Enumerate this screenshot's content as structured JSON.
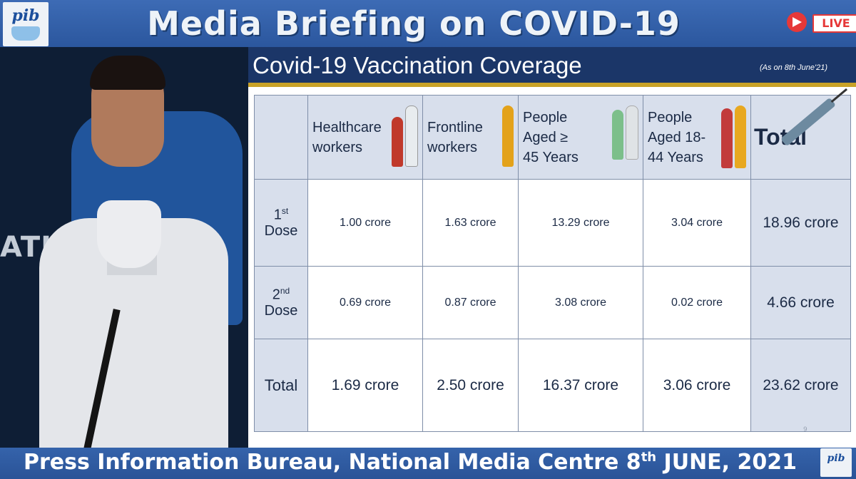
{
  "header": {
    "logo_text": "pib",
    "title": "Media Briefing on COVID-19",
    "live_label": "LIVE"
  },
  "speaker_panel": {
    "backdrop_text": "ATIONA"
  },
  "slide": {
    "title": "Covid-19 Vaccination Coverage",
    "date_note": "(As on 8th June'21)",
    "page_number": "9",
    "columns": [
      "Healthcare workers",
      "Frontline workers",
      "People Aged ≥ 45 Years",
      "People Aged 18-44 Years",
      "Total"
    ],
    "rows": [
      {
        "label_num": "1",
        "label_sup": "st",
        "label_word": "Dose",
        "values": [
          "1.00 crore",
          "1.63 crore",
          "13.29 crore",
          "3.04 crore",
          "18.96 crore"
        ]
      },
      {
        "label_num": "2",
        "label_sup": "nd",
        "label_word": "Dose",
        "values": [
          "0.69 crore",
          "0.87 crore",
          "3.08 crore",
          "0.02 crore",
          "4.66 crore"
        ]
      },
      {
        "label": "Total",
        "values": [
          "1.69 crore",
          "2.50 crore",
          "16.37 crore",
          "3.06 crore",
          "23.62 crore"
        ]
      }
    ]
  },
  "footer": {
    "text_main": "Press Information Bureau, National Media Centre  8",
    "text_sup": "th",
    "text_end": " JUNE, 2021",
    "logo_text": "pib"
  },
  "colors": {
    "banner_blue": "#2f5a9b",
    "slide_header": "#1b3668",
    "gold_stripe": "#c9a227",
    "header_cell": "#d8dfec",
    "live_red": "#e63838"
  }
}
